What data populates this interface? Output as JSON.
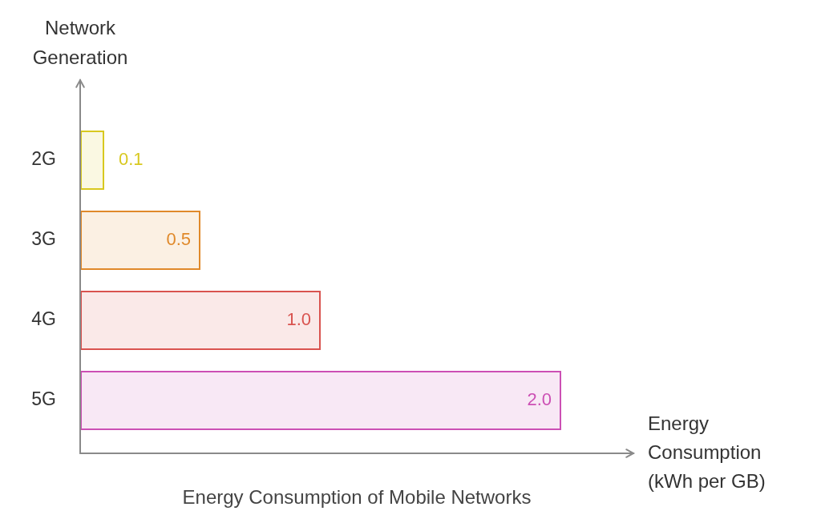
{
  "chart_data": {
    "type": "bar",
    "title": "Energy Consumption of Mobile Networks",
    "x_label": "Energy Consumption (kWh per GB)",
    "y_label": "Network Generation",
    "categories": [
      "2G",
      "3G",
      "4G",
      "5G"
    ],
    "values": [
      0.1,
      0.5,
      1.0,
      2.0
    ],
    "value_labels": [
      "0.1",
      "0.5",
      "1.0",
      "2.0"
    ],
    "colors": [
      "#d8c81f",
      "#e0892a",
      "#d9534f",
      "#cc4fb4"
    ],
    "orientation": "horizontal",
    "xlim": [
      0,
      2.3
    ],
    "grid": false,
    "data_labels": true,
    "tick_labels": "y"
  }
}
